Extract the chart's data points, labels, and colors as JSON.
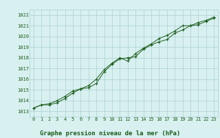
{
  "title": "Graphe pression niveau de la mer (hPa)",
  "xlabel_hours": [
    0,
    1,
    2,
    3,
    4,
    5,
    6,
    7,
    8,
    9,
    10,
    11,
    12,
    13,
    14,
    15,
    16,
    17,
    18,
    19,
    20,
    21,
    22,
    23
  ],
  "series1": [
    1013.3,
    1013.6,
    1013.6,
    1013.8,
    1014.2,
    1014.7,
    1015.1,
    1015.2,
    1015.6,
    1016.7,
    1017.4,
    1017.9,
    1018.0,
    1018.1,
    1018.8,
    1019.2,
    1019.5,
    1019.7,
    1020.3,
    1020.6,
    1021.0,
    1021.1,
    1021.4,
    1021.7
  ],
  "series2": [
    1013.3,
    1013.6,
    1013.7,
    1014.0,
    1014.4,
    1014.9,
    1015.1,
    1015.4,
    1016.0,
    1016.9,
    1017.5,
    1018.0,
    1017.7,
    1018.4,
    1018.9,
    1019.3,
    1019.8,
    1020.1,
    1020.5,
    1021.0,
    1021.0,
    1021.3,
    1021.5,
    1021.8
  ],
  "ylim": [
    1012.5,
    1022.5
  ],
  "yticks": [
    1013,
    1014,
    1015,
    1016,
    1017,
    1018,
    1019,
    1020,
    1021,
    1022
  ],
  "line_color": "#1a5c1a",
  "marker": "+",
  "bg_color": "#d8f0f0",
  "grid_color": "#aacfcf",
  "title_color": "#1a5c1a",
  "title_fontsize": 6.5,
  "tick_fontsize": 5.0
}
